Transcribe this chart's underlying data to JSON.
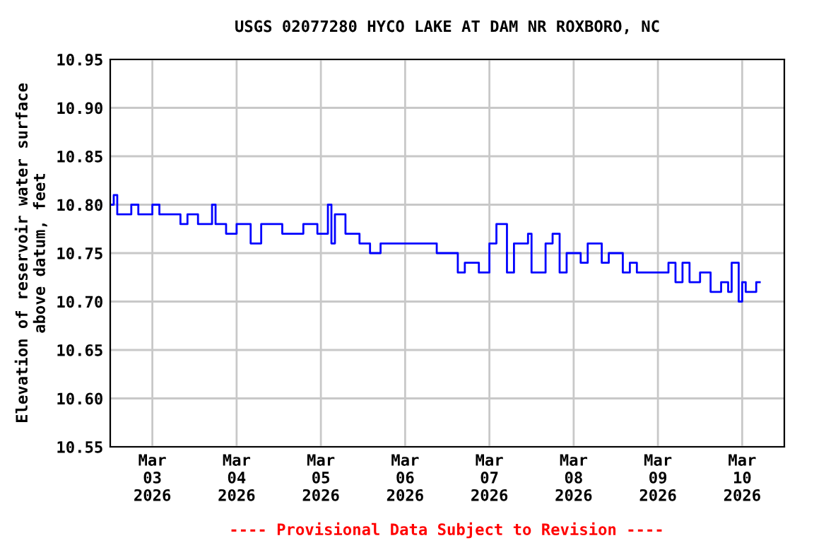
{
  "chart_data": {
    "type": "step",
    "title": "USGS 02077280 HYCO LAKE AT DAM NR ROXBORO, NC",
    "ylabel": "Elevation of reservoir water surface\nabove datum, feet",
    "annotations": [
      "---- Provisional Data Subject to Revision ----"
    ],
    "x": [
      "2026-03-02T12:00",
      "2026-03-02T13:00",
      "2026-03-02T14:00",
      "2026-03-02T18:00",
      "2026-03-02T20:00",
      "2026-03-03T00:00",
      "2026-03-03T02:00",
      "2026-03-03T08:00",
      "2026-03-03T10:00",
      "2026-03-03T13:00",
      "2026-03-03T17:00",
      "2026-03-03T18:00",
      "2026-03-03T21:00",
      "2026-03-04T00:00",
      "2026-03-04T04:00",
      "2026-03-04T07:00",
      "2026-03-04T13:00",
      "2026-03-04T19:00",
      "2026-03-04T23:00",
      "2026-03-05T02:00",
      "2026-03-05T03:00",
      "2026-03-05T04:00",
      "2026-03-05T07:00",
      "2026-03-05T11:00",
      "2026-03-05T14:00",
      "2026-03-05T17:00",
      "2026-03-06T01:00",
      "2026-03-06T09:00",
      "2026-03-06T15:00",
      "2026-03-06T17:00",
      "2026-03-06T21:00",
      "2026-03-07T00:00",
      "2026-03-07T02:00",
      "2026-03-07T05:00",
      "2026-03-07T07:00",
      "2026-03-07T11:00",
      "2026-03-07T12:00",
      "2026-03-07T16:00",
      "2026-03-07T18:00",
      "2026-03-07T20:00",
      "2026-03-07T22:00",
      "2026-03-08T02:00",
      "2026-03-08T04:00",
      "2026-03-08T08:00",
      "2026-03-08T10:00",
      "2026-03-08T14:00",
      "2026-03-08T16:00",
      "2026-03-08T18:00",
      "2026-03-09T03:00",
      "2026-03-09T05:00",
      "2026-03-09T07:00",
      "2026-03-09T09:00",
      "2026-03-09T12:00",
      "2026-03-09T15:00",
      "2026-03-09T18:00",
      "2026-03-09T20:00",
      "2026-03-09T21:00",
      "2026-03-09T23:00",
      "2026-03-10T00:00",
      "2026-03-10T01:00",
      "2026-03-10T04:00",
      "2026-03-10T05:00"
    ],
    "series": [
      {
        "color": "#0000ff",
        "values": [
          10.8,
          10.81,
          10.79,
          10.8,
          10.79,
          10.8,
          10.79,
          10.78,
          10.79,
          10.78,
          10.8,
          10.78,
          10.77,
          10.78,
          10.76,
          10.78,
          10.77,
          10.78,
          10.77,
          10.8,
          10.76,
          10.79,
          10.77,
          10.76,
          10.75,
          10.76,
          10.76,
          10.75,
          10.73,
          10.74,
          10.73,
          10.76,
          10.78,
          10.73,
          10.76,
          10.77,
          10.73,
          10.76,
          10.77,
          10.73,
          10.75,
          10.74,
          10.76,
          10.74,
          10.75,
          10.73,
          10.74,
          10.73,
          10.74,
          10.72,
          10.74,
          10.72,
          10.73,
          10.71,
          10.72,
          10.71,
          10.74,
          10.7,
          10.72,
          10.71,
          10.72,
          10.72
        ]
      }
    ],
    "xlim": [
      "2026-03-02T12:00",
      "2026-03-10T12:00"
    ],
    "xticks": [
      {
        "value": "2026-03-03",
        "label": "Mar\n03\n2026"
      },
      {
        "value": "2026-03-04",
        "label": "Mar\n04\n2026"
      },
      {
        "value": "2026-03-05",
        "label": "Mar\n05\n2026"
      },
      {
        "value": "2026-03-06",
        "label": "Mar\n06\n2026"
      },
      {
        "value": "2026-03-07",
        "label": "Mar\n07\n2026"
      },
      {
        "value": "2026-03-08",
        "label": "Mar\n08\n2026"
      },
      {
        "value": "2026-03-09",
        "label": "Mar\n09\n2026"
      },
      {
        "value": "2026-03-10",
        "label": "Mar\n10\n2026"
      }
    ],
    "ylim": [
      10.55,
      10.95
    ],
    "yticks": [
      {
        "value": 10.55,
        "label": "10.55"
      },
      {
        "value": 10.6,
        "label": "10.60"
      },
      {
        "value": 10.65,
        "label": "10.65"
      },
      {
        "value": 10.7,
        "label": "10.70"
      },
      {
        "value": 10.75,
        "label": "10.75"
      },
      {
        "value": 10.8,
        "label": "10.80"
      },
      {
        "value": 10.85,
        "label": "10.85"
      },
      {
        "value": 10.9,
        "label": "10.90"
      },
      {
        "value": 10.95,
        "label": "10.95"
      }
    ],
    "grid": true,
    "legend": false
  }
}
